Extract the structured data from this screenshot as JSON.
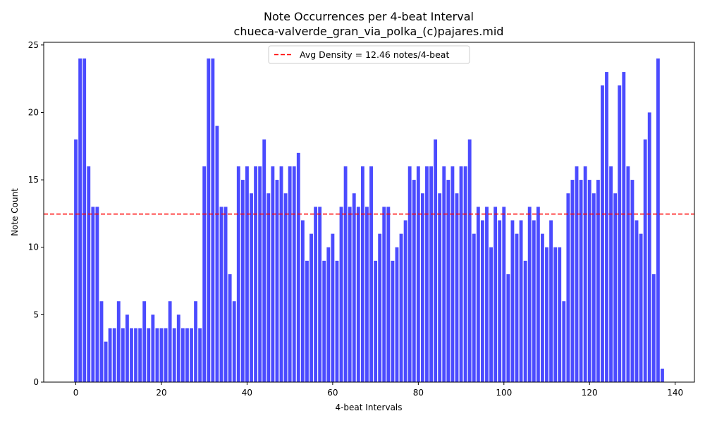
{
  "chart_data": {
    "type": "bar",
    "title": "Note Occurrences per 4-beat Interval",
    "subtitle": "chueca-valverde_gran_via_polka_(c)pajares.mid",
    "xlabel": "4-beat Intervals",
    "ylabel": "Note Count",
    "xlim": [
      -7.5,
      144.5
    ],
    "ylim": [
      0,
      25.2
    ],
    "x_ticks": [
      0,
      20,
      40,
      60,
      80,
      100,
      120,
      140
    ],
    "y_ticks": [
      0,
      5,
      10,
      15,
      20,
      25
    ],
    "bar_color": "#4b4bff",
    "grid": false,
    "series": [
      {
        "values": [
          18,
          24,
          24,
          16,
          13,
          13,
          6,
          3,
          4,
          4,
          6,
          4,
          5,
          4,
          4,
          4,
          6,
          4,
          5,
          4,
          4,
          4,
          6,
          4,
          5,
          4,
          4,
          4,
          6,
          4,
          16,
          24,
          24,
          19,
          13,
          13,
          8,
          6,
          16,
          15,
          16,
          14,
          16,
          16,
          18,
          14,
          16,
          15,
          16,
          14,
          16,
          16,
          17,
          12,
          9,
          11,
          13,
          13,
          9,
          10,
          11,
          9,
          13,
          16,
          13,
          14,
          13,
          16,
          13,
          16,
          9,
          11,
          13,
          13,
          9,
          10,
          11,
          12,
          16,
          15,
          16,
          14,
          16,
          16,
          18,
          14,
          16,
          15,
          16,
          14,
          16,
          16,
          18,
          11,
          13,
          12,
          13,
          10,
          13,
          12,
          13,
          8,
          12,
          11,
          12,
          9,
          13,
          12,
          13,
          11,
          10,
          12,
          10,
          10,
          6,
          14,
          15,
          16,
          15,
          16,
          15,
          14,
          15,
          22,
          23,
          16,
          14,
          22,
          23,
          16,
          15,
          12,
          11,
          18,
          20,
          8,
          24,
          1
        ]
      }
    ],
    "reference_line": {
      "value": 12.46,
      "label": "Avg Density = 12.46 notes/4-beat",
      "color": "#ff0000",
      "style": "dashed"
    },
    "legend_position": "upper center"
  }
}
